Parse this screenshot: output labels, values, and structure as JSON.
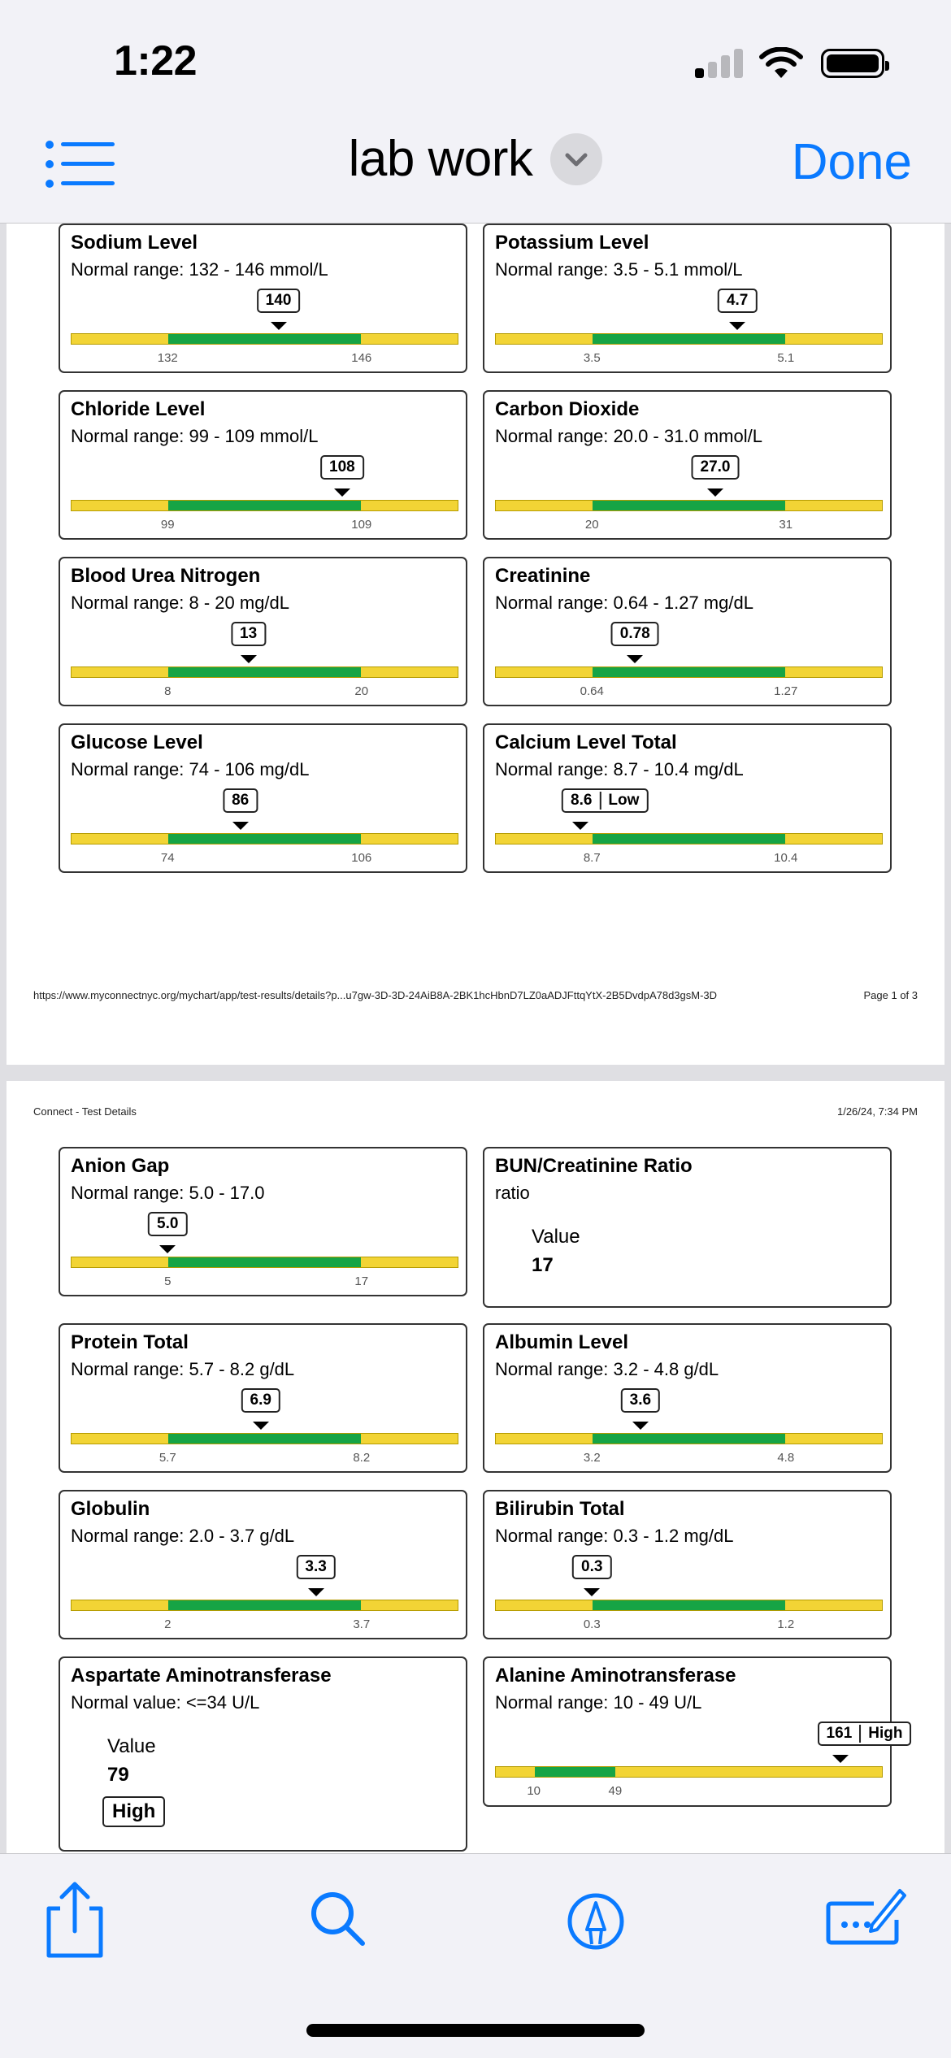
{
  "status": {
    "time": "1:22"
  },
  "nav": {
    "title": "lab work",
    "done": "Done"
  },
  "page1": {
    "footer_url": "https://www.myconnectnyc.org/mychart/app/test-results/details?p...u7gw-3D-3D-24AiB8A-2BK1hcHbnD7LZ0aADJFttqYtX-2B5DvdpA78d3gsM-3D",
    "footer_page": "Page 1 of 3"
  },
  "page2": {
    "header_left": "Connect - Test Details",
    "header_right": "1/26/24, 7:34 PM"
  },
  "colors": {
    "normal": "#16a445",
    "out_of_range": "#f2d435",
    "accent": "#0a7aff"
  },
  "tests": [
    {
      "name": "Sodium Level",
      "range": "Normal range: 132 - 146 mmol/L",
      "low": "132",
      "high": "146",
      "value": "140",
      "flag": ""
    },
    {
      "name": "Potassium Level",
      "range": "Normal range: 3.5 - 5.1 mmol/L",
      "low": "3.5",
      "high": "5.1",
      "value": "4.7",
      "flag": ""
    },
    {
      "name": "Chloride Level",
      "range": "Normal range: 99 - 109 mmol/L",
      "low": "99",
      "high": "109",
      "value": "108",
      "flag": ""
    },
    {
      "name": "Carbon Dioxide",
      "range": "Normal range: 20.0 - 31.0 mmol/L",
      "low": "20",
      "high": "31",
      "value": "27.0",
      "flag": ""
    },
    {
      "name": "Blood Urea Nitrogen",
      "range": "Normal range: 8 - 20 mg/dL",
      "low": "8",
      "high": "20",
      "value": "13",
      "flag": ""
    },
    {
      "name": "Creatinine",
      "range": "Normal range: 0.64 - 1.27 mg/dL",
      "low": "0.64",
      "high": "1.27",
      "value": "0.78",
      "flag": ""
    },
    {
      "name": "Glucose Level",
      "range": "Normal range: 74 - 106 mg/dL",
      "low": "74",
      "high": "106",
      "value": "86",
      "flag": ""
    },
    {
      "name": "Calcium Level Total",
      "range": "Normal range: 8.7 - 10.4 mg/dL",
      "low": "8.7",
      "high": "10.4",
      "value": "8.6",
      "flag": "Low"
    },
    {
      "name": "Anion Gap",
      "range": "Normal range: 5.0 - 17.0",
      "low": "5",
      "high": "17",
      "value": "5.0",
      "flag": ""
    },
    {
      "name": "BUN/Creatinine Ratio",
      "range": "ratio",
      "value_label": "Value",
      "value": "17"
    },
    {
      "name": "Protein Total",
      "range": "Normal range: 5.7 - 8.2 g/dL",
      "low": "5.7",
      "high": "8.2",
      "value": "6.9",
      "flag": ""
    },
    {
      "name": "Albumin Level",
      "range": "Normal range: 3.2 - 4.8 g/dL",
      "low": "3.2",
      "high": "4.8",
      "value": "3.6",
      "flag": ""
    },
    {
      "name": "Globulin",
      "range": "Normal range: 2.0 - 3.7 g/dL",
      "low": "2",
      "high": "3.7",
      "value": "3.3",
      "flag": ""
    },
    {
      "name": "Bilirubin Total",
      "range": "Normal range: 0.3 - 1.2 mg/dL",
      "low": "0.3",
      "high": "1.2",
      "value": "0.3",
      "flag": ""
    },
    {
      "name": "Aspartate Aminotransferase",
      "range": "Normal value: <=34 U/L",
      "value_label": "Value",
      "value": "79",
      "flag": "High"
    },
    {
      "name": "Alanine Aminotransferase",
      "range": "Normal range: 10 - 49 U/L",
      "low": "10",
      "high": "49",
      "value": "161",
      "flag": "High"
    }
  ]
}
